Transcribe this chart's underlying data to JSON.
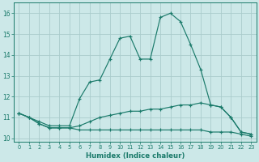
{
  "x": [
    0,
    1,
    2,
    3,
    4,
    5,
    6,
    7,
    8,
    9,
    10,
    11,
    12,
    13,
    14,
    15,
    16,
    17,
    18,
    19,
    20,
    21,
    22,
    23
  ],
  "line_top": [
    11.2,
    11.0,
    10.8,
    10.6,
    10.6,
    10.6,
    11.9,
    12.7,
    12.8,
    13.8,
    14.8,
    14.9,
    13.8,
    13.8,
    15.8,
    16.0,
    15.6,
    14.5,
    13.3,
    11.6,
    11.5,
    11.0,
    10.3,
    10.2
  ],
  "line_mid": [
    11.2,
    11.0,
    10.7,
    10.5,
    10.5,
    10.5,
    10.6,
    10.8,
    11.0,
    11.1,
    11.2,
    11.3,
    11.3,
    11.4,
    11.4,
    11.5,
    11.6,
    11.6,
    11.7,
    11.6,
    11.5,
    11.0,
    10.3,
    10.2
  ],
  "line_bot": [
    11.2,
    11.0,
    10.7,
    10.5,
    10.5,
    10.5,
    10.4,
    10.4,
    10.4,
    10.4,
    10.4,
    10.4,
    10.4,
    10.4,
    10.4,
    10.4,
    10.4,
    10.4,
    10.4,
    10.3,
    10.3,
    10.3,
    10.2,
    10.1
  ],
  "bg_color": "#cce8e8",
  "grid_color": "#aacccc",
  "line_color": "#1a7a6a",
  "xlabel": "Humidex (Indice chaleur)",
  "yticks": [
    10,
    11,
    12,
    13,
    14,
    15,
    16
  ],
  "xlim": [
    -0.5,
    23.5
  ],
  "ylim": [
    9.85,
    16.5
  ]
}
